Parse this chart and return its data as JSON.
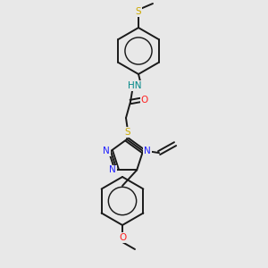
{
  "bg_color": "#e8e8e8",
  "bond_color": "#1a1a1a",
  "lw": 1.4,
  "atom_colors": {
    "N": "#2020ff",
    "O": "#ff2020",
    "S": "#ccaa00",
    "H": "#008888"
  },
  "fs": 7.5
}
